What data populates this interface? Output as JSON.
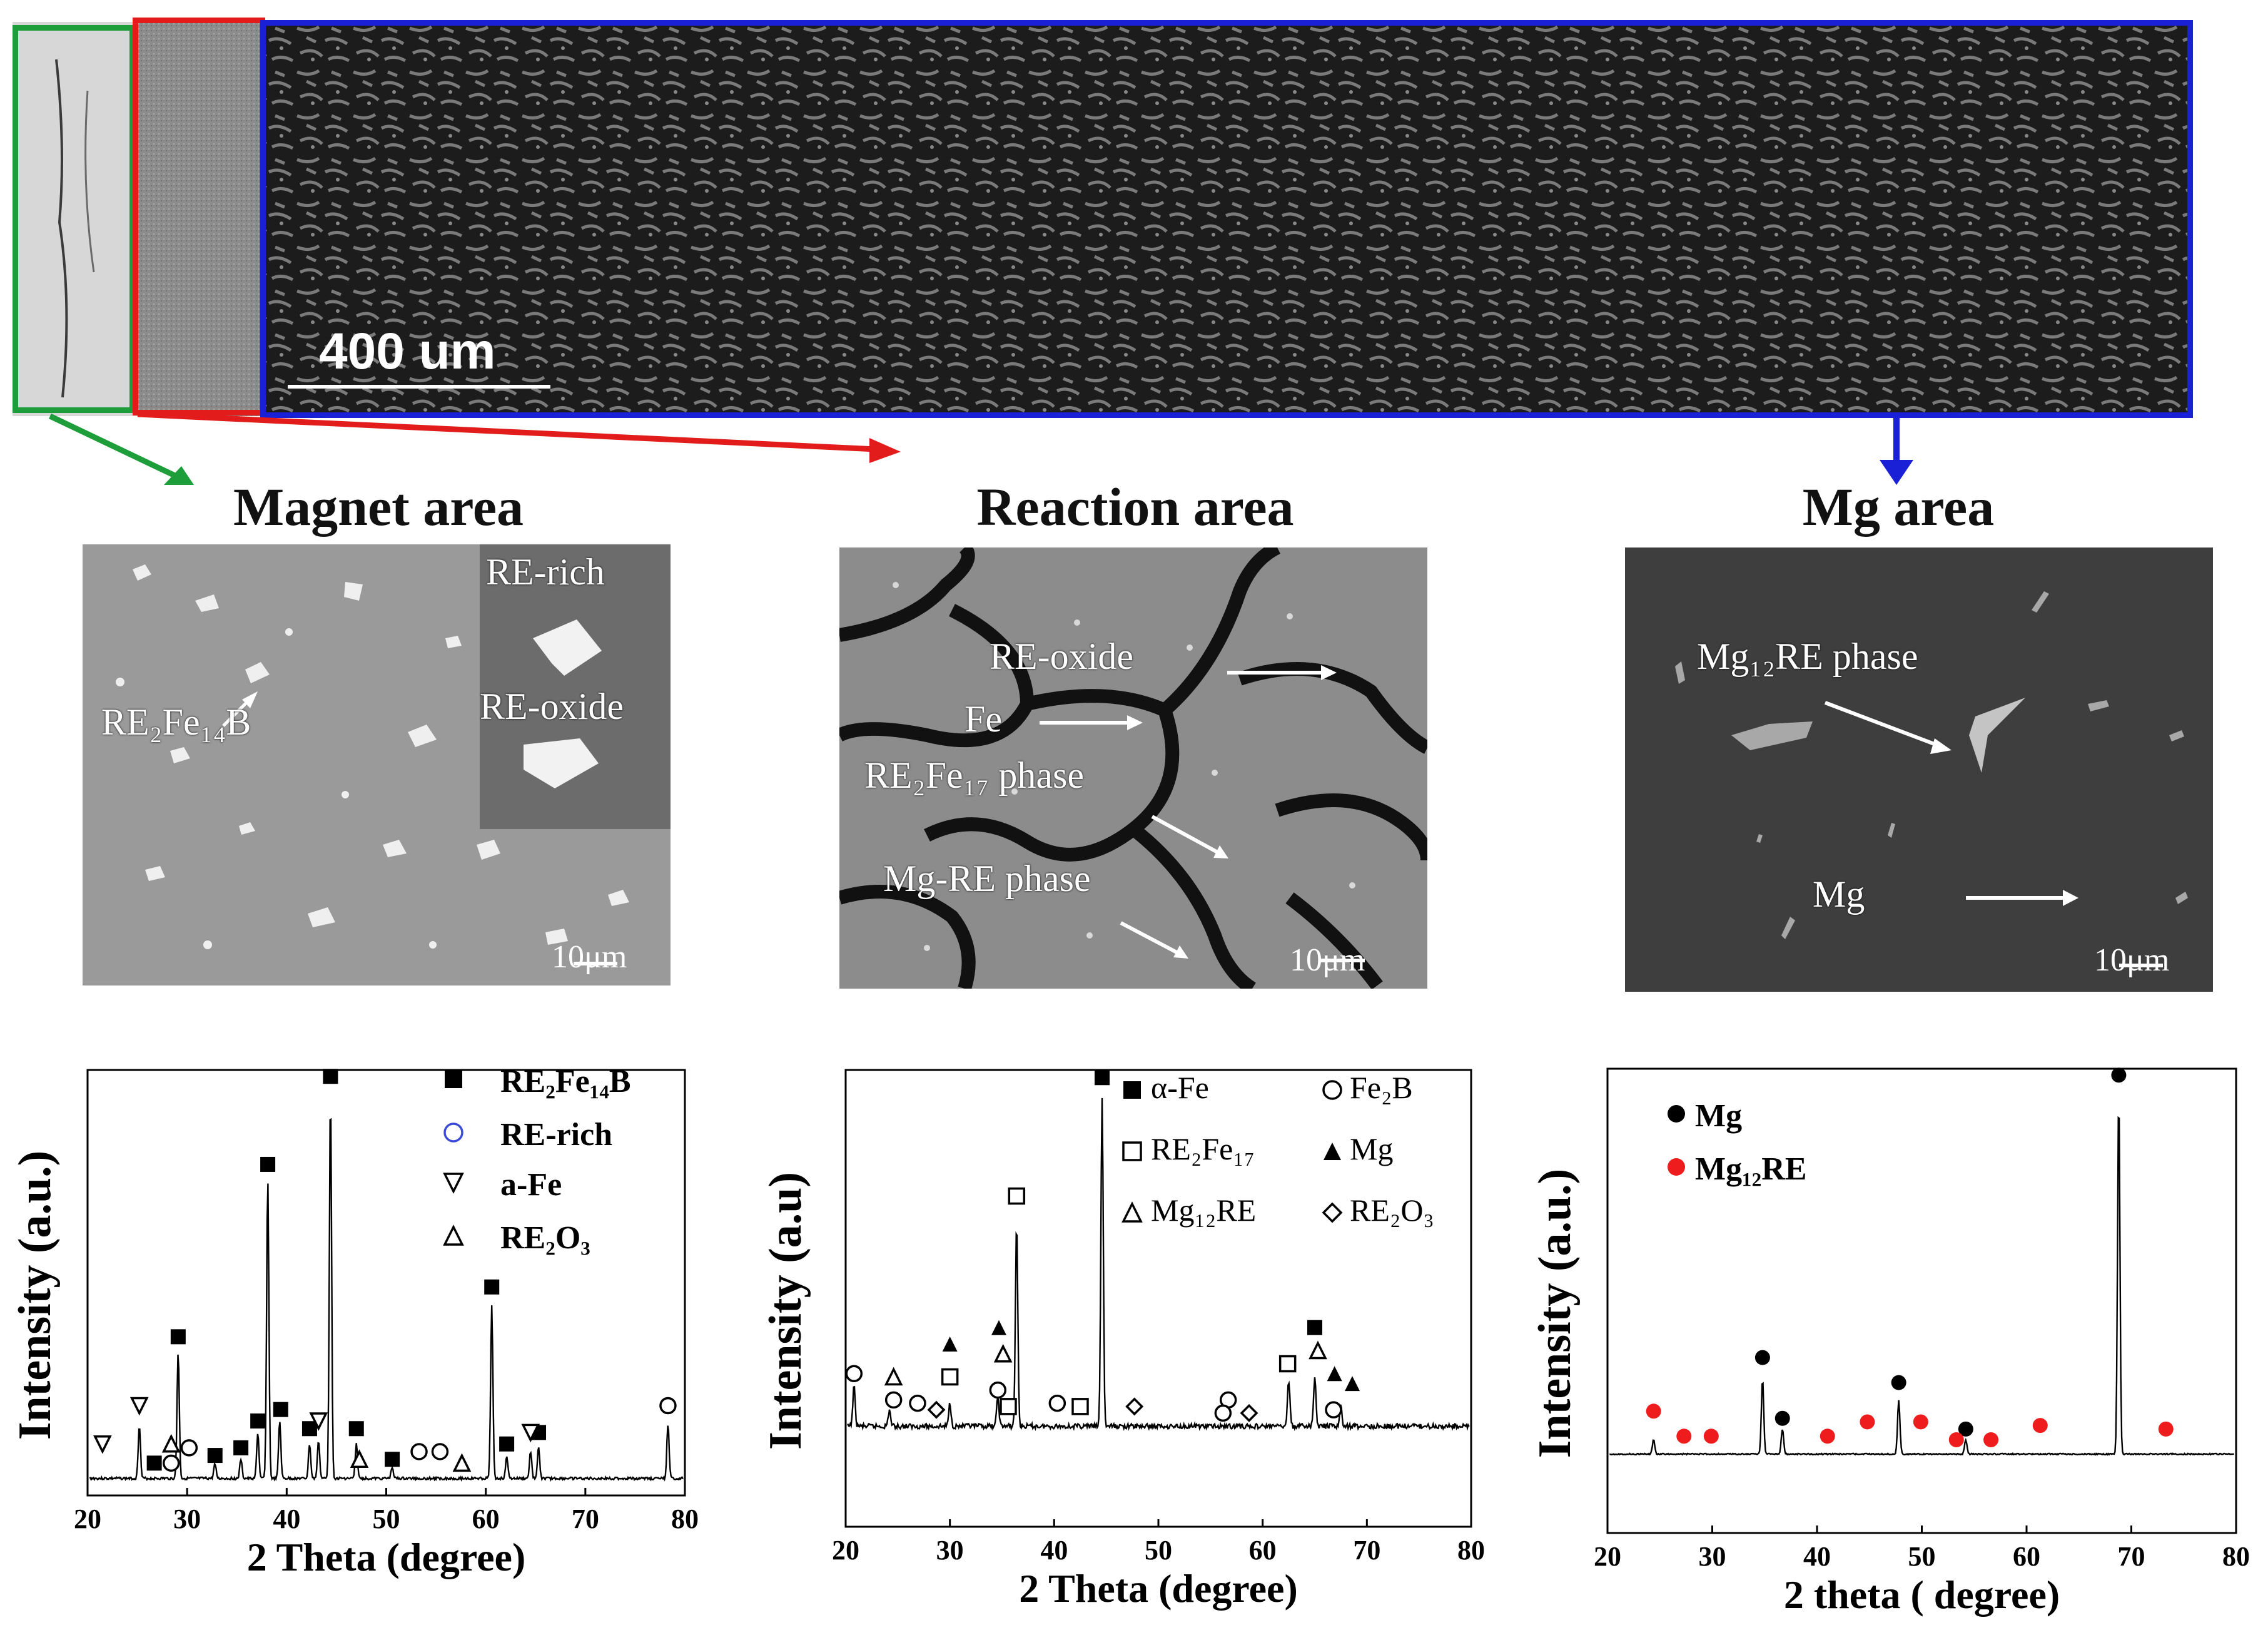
{
  "overview": {
    "scale_bar": "400 um",
    "frame_colors": {
      "magnet": "#1e9e3a",
      "reaction": "#e21b1b",
      "mg": "#1a20d6"
    }
  },
  "panels": {
    "magnet": {
      "title": "Magnet area",
      "annotations": [
        "RE-rich",
        "RE-oxide",
        "RE₂Fe₁₄B"
      ],
      "scale": "10μm"
    },
    "reaction": {
      "title": "Reaction area",
      "annotations": [
        "RE-oxide",
        "Fe",
        "RE₂Fe₁₇ phase",
        "Mg-RE phase"
      ],
      "scale": "10μm"
    },
    "mg": {
      "title": "Mg area",
      "annotations": [
        "Mg₁₂RE phase",
        "Mg"
      ],
      "scale": "10μm"
    }
  },
  "chart_data": [
    {
      "type": "line",
      "panel": "magnet",
      "xlabel": "2 Theta (degree)",
      "ylabel": "Intensity (a.u.)",
      "xlim": [
        20,
        80
      ],
      "xticks": [
        20,
        30,
        40,
        50,
        60,
        70,
        80
      ],
      "legend": [
        "RE₂Fe₁₄B",
        "RE-rich",
        "a-Fe",
        "RE₂O₃"
      ],
      "peaks": [
        {
          "x": 25.2,
          "h": 0.14
        },
        {
          "x": 29.1,
          "h": 0.33
        },
        {
          "x": 32.8,
          "h": 0.04
        },
        {
          "x": 35.4,
          "h": 0.05
        },
        {
          "x": 37.1,
          "h": 0.12
        },
        {
          "x": 38.1,
          "h": 0.78
        },
        {
          "x": 39.3,
          "h": 0.15
        },
        {
          "x": 42.3,
          "h": 0.09
        },
        {
          "x": 43.2,
          "h": 0.1
        },
        {
          "x": 44.4,
          "h": 1.0
        },
        {
          "x": 47.0,
          "h": 0.09
        },
        {
          "x": 50.6,
          "h": 0.03
        },
        {
          "x": 60.6,
          "h": 0.45
        },
        {
          "x": 62.1,
          "h": 0.06
        },
        {
          "x": 64.5,
          "h": 0.07
        },
        {
          "x": 65.3,
          "h": 0.08
        },
        {
          "x": 78.3,
          "h": 0.14
        }
      ],
      "markers": [
        {
          "x": 26.7,
          "y": 0.04,
          "s": "sq"
        },
        {
          "x": 29.1,
          "y": 0.37,
          "s": "sq"
        },
        {
          "x": 32.8,
          "y": 0.06,
          "s": "sq"
        },
        {
          "x": 35.4,
          "y": 0.08,
          "s": "sq"
        },
        {
          "x": 37.1,
          "y": 0.15,
          "s": "sq"
        },
        {
          "x": 38.1,
          "y": 0.82,
          "s": "sq"
        },
        {
          "x": 39.4,
          "y": 0.18,
          "s": "sq"
        },
        {
          "x": 42.3,
          "y": 0.13,
          "s": "sq"
        },
        {
          "x": 44.4,
          "y": 1.05,
          "s": "sq"
        },
        {
          "x": 47.0,
          "y": 0.13,
          "s": "sq"
        },
        {
          "x": 50.6,
          "y": 0.05,
          "s": "sq"
        },
        {
          "x": 60.6,
          "y": 0.5,
          "s": "sq"
        },
        {
          "x": 62.1,
          "y": 0.09,
          "s": "sq"
        },
        {
          "x": 65.3,
          "y": 0.12,
          "s": "sq"
        },
        {
          "x": 28.4,
          "y": 0.04,
          "s": "ci"
        },
        {
          "x": 30.2,
          "y": 0.08,
          "s": "ci"
        },
        {
          "x": 53.3,
          "y": 0.07,
          "s": "ci"
        },
        {
          "x": 55.4,
          "y": 0.07,
          "s": "ci"
        },
        {
          "x": 78.3,
          "y": 0.19,
          "s": "ci"
        },
        {
          "x": 21.5,
          "y": 0.09,
          "s": "td"
        },
        {
          "x": 25.2,
          "y": 0.19,
          "s": "td"
        },
        {
          "x": 43.2,
          "y": 0.15,
          "s": "td"
        },
        {
          "x": 64.5,
          "y": 0.12,
          "s": "td"
        },
        {
          "x": 28.4,
          "y": 0.09,
          "s": "tu"
        },
        {
          "x": 47.3,
          "y": 0.05,
          "s": "tu"
        },
        {
          "x": 57.6,
          "y": 0.04,
          "s": "tu"
        }
      ]
    },
    {
      "type": "line",
      "panel": "reaction",
      "xlabel": "2 Theta  (degree)",
      "ylabel": "Intensity (a.u)",
      "xlim": [
        20,
        80
      ],
      "xticks": [
        20,
        30,
        40,
        50,
        60,
        70,
        80
      ],
      "legend": [
        "α-Fe",
        "Fe₂B",
        "RE₂Fe₁₇",
        "Mg",
        "Mg₁₂RE",
        "RE₂O₃"
      ],
      "peaks": [
        {
          "x": 20.8,
          "h": 0.12
        },
        {
          "x": 24.2,
          "h": 0.05
        },
        {
          "x": 30.0,
          "h": 0.07
        },
        {
          "x": 34.6,
          "h": 0.09
        },
        {
          "x": 36.4,
          "h": 0.62
        },
        {
          "x": 44.6,
          "h": 1.0
        },
        {
          "x": 62.5,
          "h": 0.14
        },
        {
          "x": 65.0,
          "h": 0.15
        },
        {
          "x": 67.5,
          "h": 0.06
        }
      ],
      "markers": [
        {
          "x": 44.6,
          "y": 1.06,
          "s": "sq"
        },
        {
          "x": 65.0,
          "y": 0.3,
          "s": "sq"
        },
        {
          "x": 36.4,
          "y": 0.7,
          "s": "osq"
        },
        {
          "x": 30.0,
          "y": 0.15,
          "s": "osq"
        },
        {
          "x": 35.6,
          "y": 0.06,
          "s": "osq"
        },
        {
          "x": 42.5,
          "y": 0.06,
          "s": "osq"
        },
        {
          "x": 62.4,
          "y": 0.19,
          "s": "osq"
        },
        {
          "x": 20.8,
          "y": 0.16,
          "s": "ci"
        },
        {
          "x": 24.6,
          "y": 0.08,
          "s": "ci"
        },
        {
          "x": 26.9,
          "y": 0.07,
          "s": "ci"
        },
        {
          "x": 34.6,
          "y": 0.11,
          "s": "ci"
        },
        {
          "x": 40.3,
          "y": 0.07,
          "s": "ci"
        },
        {
          "x": 56.7,
          "y": 0.08,
          "s": "ci"
        },
        {
          "x": 56.2,
          "y": 0.04,
          "s": "ci"
        },
        {
          "x": 66.8,
          "y": 0.05,
          "s": "ci"
        },
        {
          "x": 30.0,
          "y": 0.25,
          "s": "tf"
        },
        {
          "x": 34.7,
          "y": 0.3,
          "s": "tf"
        },
        {
          "x": 66.9,
          "y": 0.16,
          "s": "tf"
        },
        {
          "x": 68.6,
          "y": 0.13,
          "s": "tf"
        },
        {
          "x": 24.6,
          "y": 0.15,
          "s": "tu"
        },
        {
          "x": 35.1,
          "y": 0.22,
          "s": "tu"
        },
        {
          "x": 65.3,
          "y": 0.23,
          "s": "tu"
        },
        {
          "x": 28.7,
          "y": 0.05,
          "s": "di"
        },
        {
          "x": 47.7,
          "y": 0.06,
          "s": "di"
        },
        {
          "x": 58.7,
          "y": 0.04,
          "s": "di"
        }
      ]
    },
    {
      "type": "line",
      "panel": "mg",
      "xlabel": "2 theta ( degree)",
      "ylabel": "Intensity (a.u.)",
      "xlim": [
        20,
        80
      ],
      "xticks": [
        20,
        30,
        40,
        50,
        60,
        70,
        80
      ],
      "legend": [
        "Mg",
        "Mg₁₂RE"
      ],
      "peaks": [
        {
          "x": 24.4,
          "h": 0.04
        },
        {
          "x": 34.8,
          "h": 0.21
        },
        {
          "x": 36.7,
          "h": 0.07
        },
        {
          "x": 47.8,
          "h": 0.15
        },
        {
          "x": 54.2,
          "h": 0.04
        },
        {
          "x": 68.8,
          "h": 1.0
        }
      ],
      "markers": [
        {
          "x": 34.8,
          "y": 0.27,
          "s": "dot"
        },
        {
          "x": 36.7,
          "y": 0.1,
          "s": "dot"
        },
        {
          "x": 47.8,
          "y": 0.2,
          "s": "dot"
        },
        {
          "x": 54.2,
          "y": 0.07,
          "s": "dot"
        },
        {
          "x": 68.8,
          "y": 1.06,
          "s": "dot"
        },
        {
          "x": 24.4,
          "y": 0.12,
          "s": "rdot"
        },
        {
          "x": 27.3,
          "y": 0.05,
          "s": "rdot"
        },
        {
          "x": 29.9,
          "y": 0.05,
          "s": "rdot"
        },
        {
          "x": 41.0,
          "y": 0.05,
          "s": "rdot"
        },
        {
          "x": 44.8,
          "y": 0.09,
          "s": "rdot"
        },
        {
          "x": 49.9,
          "y": 0.09,
          "s": "rdot"
        },
        {
          "x": 53.3,
          "y": 0.04,
          "s": "rdot"
        },
        {
          "x": 56.6,
          "y": 0.04,
          "s": "rdot"
        },
        {
          "x": 61.3,
          "y": 0.08,
          "s": "rdot"
        },
        {
          "x": 73.3,
          "y": 0.07,
          "s": "rdot"
        }
      ]
    }
  ]
}
